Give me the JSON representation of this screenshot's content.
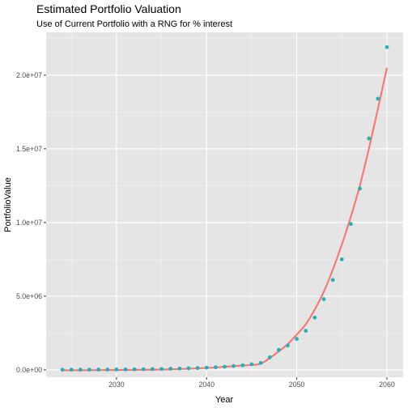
{
  "chart_data": {
    "type": "scatter",
    "title": "Estimated Portfolio Valuation",
    "subtitle": "Use of Current Portfolio with a RNG for % interest",
    "xlabel": "Year",
    "ylabel": "PortfolioValue",
    "xlim": [
      2022.2,
      2061.8
    ],
    "ylim": [
      -500000,
      22900000
    ],
    "x_ticks": [
      2030,
      2040,
      2050,
      2060
    ],
    "x_tick_labels": [
      "2030",
      "2040",
      "2050",
      "2060"
    ],
    "y_ticks": [
      0,
      5000000,
      10000000,
      15000000,
      20000000
    ],
    "y_tick_labels": [
      "0.0e+00",
      "5.0e+06",
      "1.0e+07",
      "1.5e+07",
      "2.0e+07"
    ],
    "grid": true,
    "background": "#e5e5e5",
    "point_color": "#20b2b8",
    "line_color": "#f8766d",
    "points": {
      "x": [
        2024,
        2025,
        2026,
        2027,
        2028,
        2029,
        2030,
        2031,
        2032,
        2033,
        2034,
        2035,
        2036,
        2037,
        2038,
        2039,
        2040,
        2041,
        2042,
        2043,
        2044,
        2045,
        2046,
        2047,
        2048,
        2049,
        2050,
        2051,
        2052,
        2053,
        2054,
        2055,
        2056,
        2057,
        2058,
        2059,
        2060
      ],
      "y": [
        10000,
        12000,
        14000,
        16000,
        19000,
        22000,
        26000,
        31000,
        37000,
        44000,
        52000,
        62000,
        74000,
        88000,
        105000,
        125000,
        150000,
        180000,
        215000,
        260000,
        310000,
        380000,
        470000,
        850000,
        1350000,
        1650000,
        2100000,
        2650000,
        3550000,
        4800000,
        6100000,
        7500000,
        9900000,
        12300000,
        15700000,
        18400000,
        21900000
      ]
    },
    "fit_line": {
      "x": [
        2024,
        2028,
        2032,
        2036,
        2040,
        2042,
        2044,
        2045,
        2046,
        2047,
        2048,
        2049,
        2050,
        2051,
        2052,
        2053,
        2054,
        2055,
        2056,
        2057,
        2058,
        2059,
        2060
      ],
      "y": [
        -30000,
        -20000,
        0,
        40000,
        130000,
        210000,
        300000,
        330000,
        420000,
        800000,
        1250000,
        1750000,
        2400000,
        3100000,
        4100000,
        5300000,
        6800000,
        8500000,
        10400000,
        12500000,
        15000000,
        17700000,
        20500000
      ]
    }
  }
}
